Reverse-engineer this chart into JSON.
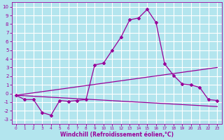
{
  "xlabel": "Windchill (Refroidissement éolien,°C)",
  "xlim": [
    -0.5,
    23.5
  ],
  "ylim": [
    -3.5,
    10.5
  ],
  "xticks": [
    0,
    1,
    2,
    3,
    4,
    5,
    6,
    7,
    8,
    9,
    10,
    11,
    12,
    13,
    14,
    15,
    16,
    17,
    18,
    19,
    20,
    21,
    22,
    23
  ],
  "yticks": [
    -3,
    -2,
    -1,
    0,
    1,
    2,
    3,
    4,
    5,
    6,
    7,
    8,
    9,
    10
  ],
  "bg_color": "#b3e5ee",
  "grid_color": "#ffffff",
  "line_color": "#990099",
  "line1_x": [
    0,
    1,
    2,
    3,
    4,
    5,
    6,
    7,
    8,
    9,
    10,
    11,
    12,
    13,
    14,
    15,
    16,
    17,
    18,
    19,
    20,
    21,
    22,
    23
  ],
  "line1_y": [
    -0.2,
    -0.7,
    -0.7,
    -2.2,
    -2.5,
    -0.8,
    -0.9,
    -0.8,
    -0.7,
    3.3,
    3.5,
    5.0,
    6.5,
    8.5,
    8.7,
    9.7,
    8.2,
    3.4,
    2.1,
    1.1,
    1.0,
    0.7,
    -0.7,
    -0.8
  ],
  "line2_x": [
    0,
    23
  ],
  "line2_y": [
    -0.2,
    3.0
  ],
  "line3_x": [
    0,
    23
  ],
  "line3_y": [
    -0.2,
    -1.5
  ],
  "xlabel_fontsize": 5.5,
  "tick_fontsize_x": 4.2,
  "tick_fontsize_y": 5.0
}
